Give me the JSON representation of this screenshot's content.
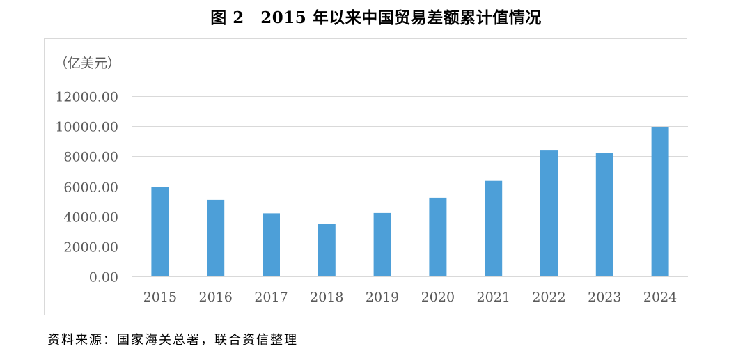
{
  "figure": {
    "title": "图 2　2015 年以来中国贸易差额累计值情况",
    "unit_label": "（亿美元）",
    "source_note": "资料来源：国家海关总署，联合资信整理"
  },
  "colors": {
    "bar": "#4d9fd8",
    "grid": "#d9d9d9",
    "axis": "#d9d9d9",
    "tick_text": "#595959"
  },
  "chart_data": {
    "type": "bar",
    "categories": [
      "2015",
      "2016",
      "2017",
      "2018",
      "2019",
      "2020",
      "2021",
      "2022",
      "2023",
      "2024"
    ],
    "values": [
      5940,
      5100,
      4200,
      3510,
      4220,
      5240,
      6360,
      8380,
      8230,
      9930
    ],
    "ylabel": "（亿美元）",
    "ylim": [
      0,
      12000
    ],
    "yticks": [
      "0.00",
      "2000.00",
      "4000.00",
      "6000.00",
      "8000.00",
      "10000.00",
      "12000.00"
    ],
    "grid": true,
    "legend": "none"
  }
}
